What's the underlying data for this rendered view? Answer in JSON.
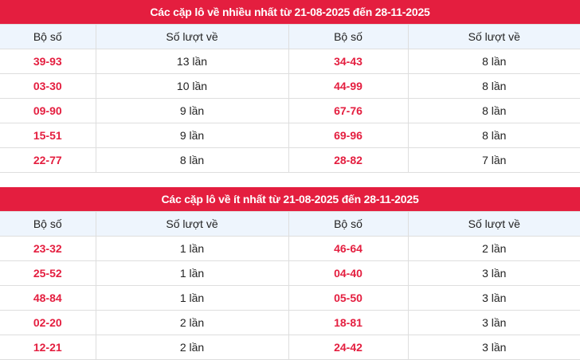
{
  "colors": {
    "accent": "#e41e3f",
    "header_bg": "#eef5fd"
  },
  "tables": [
    {
      "title": "Các cặp lô về nhiều nhất từ 21-08-2025 đến 28-11-2025",
      "headers": [
        "Bộ số",
        "Số lượt về",
        "Bộ số",
        "Số lượt về"
      ],
      "rows": [
        [
          "39-93",
          "13 lần",
          "34-43",
          "8 lần"
        ],
        [
          "03-30",
          "10 lần",
          "44-99",
          "8 lần"
        ],
        [
          "09-90",
          "9 lần",
          "67-76",
          "8 lần"
        ],
        [
          "15-51",
          "9 lần",
          "69-96",
          "8 lần"
        ],
        [
          "22-77",
          "8 lần",
          "28-82",
          "7 lần"
        ]
      ]
    },
    {
      "title": "Các cặp lô về ít nhất từ 21-08-2025 đến 28-11-2025",
      "headers": [
        "Bộ số",
        "Số lượt về",
        "Bộ số",
        "Số lượt về"
      ],
      "rows": [
        [
          "23-32",
          "1 lần",
          "46-64",
          "2 lần"
        ],
        [
          "25-52",
          "1 lần",
          "04-40",
          "3 lần"
        ],
        [
          "48-84",
          "1 lần",
          "05-50",
          "3 lần"
        ],
        [
          "02-20",
          "2 lần",
          "18-81",
          "3 lần"
        ],
        [
          "12-21",
          "2 lần",
          "24-42",
          "3 lần"
        ]
      ]
    }
  ]
}
